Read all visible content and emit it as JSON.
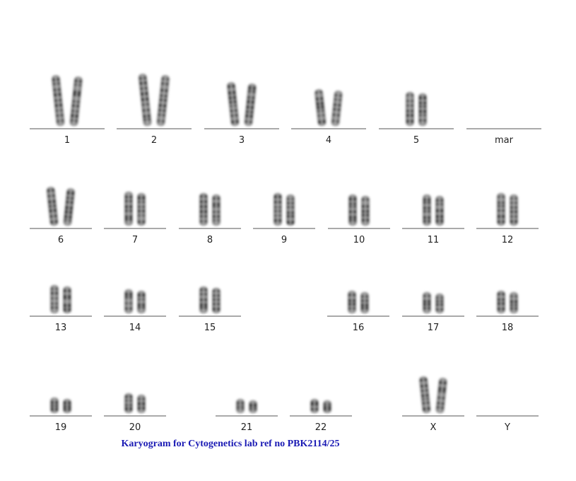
{
  "slots": [
    {
      "label": "1"
    },
    {
      "label": "2"
    },
    {
      "label": "3"
    },
    {
      "label": "4"
    },
    {
      "label": "5"
    },
    {
      "label": "mar"
    },
    {
      "label": "6"
    },
    {
      "label": "7"
    },
    {
      "label": "8"
    },
    {
      "label": "9"
    },
    {
      "label": "10"
    },
    {
      "label": "11"
    },
    {
      "label": "12"
    },
    {
      "label": "13"
    },
    {
      "label": "14"
    },
    {
      "label": "15"
    },
    {
      "label": "16"
    },
    {
      "label": "17"
    },
    {
      "label": "18"
    },
    {
      "label": "19"
    },
    {
      "label": "20"
    },
    {
      "label": "21"
    },
    {
      "label": "22"
    },
    {
      "label": "X"
    },
    {
      "label": "Y"
    }
  ],
  "caption": "Karyogram for Cytogenetics lab ref no PBK2114/25"
}
